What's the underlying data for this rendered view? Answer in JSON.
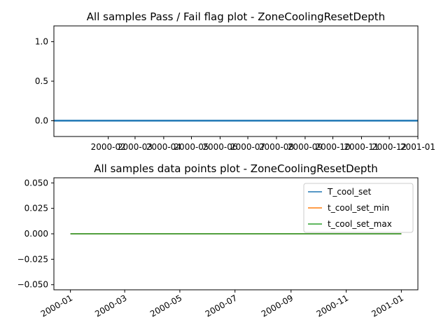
{
  "chart_data": [
    {
      "type": "line",
      "title": "All samples Pass / Fail flag plot - ZoneCoolingResetDepth",
      "xlabel": "",
      "ylabel": "",
      "x_tick_labels": [
        "2000-02",
        "2000-03",
        "2000-04",
        "2000-05",
        "2000-06",
        "2000-07",
        "2000-08",
        "2000-09",
        "2000-10",
        "2000-11",
        "2000-12",
        "2001-01"
      ],
      "x_ticks": [
        "2000-02-01",
        "2000-03-01",
        "2000-04-01",
        "2000-05-01",
        "2000-06-01",
        "2000-07-01",
        "2000-08-01",
        "2000-09-01",
        "2000-10-01",
        "2000-11-01",
        "2000-12-01",
        "2001-01-01"
      ],
      "xlim": [
        "2000-01-01",
        "2001-01-01"
      ],
      "y_ticks": [
        0.0,
        0.5,
        1.0
      ],
      "y_tick_labels": [
        "0.0",
        "0.5",
        "1.0"
      ],
      "ylim": [
        -0.2,
        1.2
      ],
      "grid": false,
      "series": [
        {
          "x": [
            "2000-01-01",
            "2001-01-01"
          ],
          "values": [
            0,
            0
          ],
          "color": "#1f77b4"
        }
      ]
    },
    {
      "type": "line",
      "title": "All samples data points plot - ZoneCoolingResetDepth",
      "xlabel": "",
      "ylabel": "",
      "x_tick_labels": [
        "2000-01",
        "2000-03",
        "2000-05",
        "2000-07",
        "2000-09",
        "2000-11",
        "2001-01"
      ],
      "x_ticks": [
        "2000-01-01",
        "2000-03-01",
        "2000-05-01",
        "2000-07-01",
        "2000-09-01",
        "2000-11-01",
        "2001-01-01"
      ],
      "xlim": [
        "2000-01-01",
        "2001-01-01"
      ],
      "y_ticks": [
        -0.05,
        -0.025,
        0.0,
        0.025,
        0.05
      ],
      "y_tick_labels": [
        "−0.050",
        "−0.025",
        "0.000",
        "0.025",
        "0.050"
      ],
      "ylim": [
        -0.055,
        0.055
      ],
      "grid": false,
      "legend_position": "top-right",
      "series": [
        {
          "name": "T_cool_set",
          "x": [
            "2000-01-01",
            "2001-01-01"
          ],
          "values": [
            0,
            0
          ],
          "color": "#1f77b4"
        },
        {
          "name": "t_cool_set_min",
          "x": [
            "2000-01-01",
            "2001-01-01"
          ],
          "values": [
            0,
            0
          ],
          "color": "#ff7f0e"
        },
        {
          "name": "t_cool_set_max",
          "x": [
            "2000-01-01",
            "2001-01-01"
          ],
          "values": [
            0,
            0
          ],
          "color": "#2ca02c"
        }
      ]
    }
  ]
}
